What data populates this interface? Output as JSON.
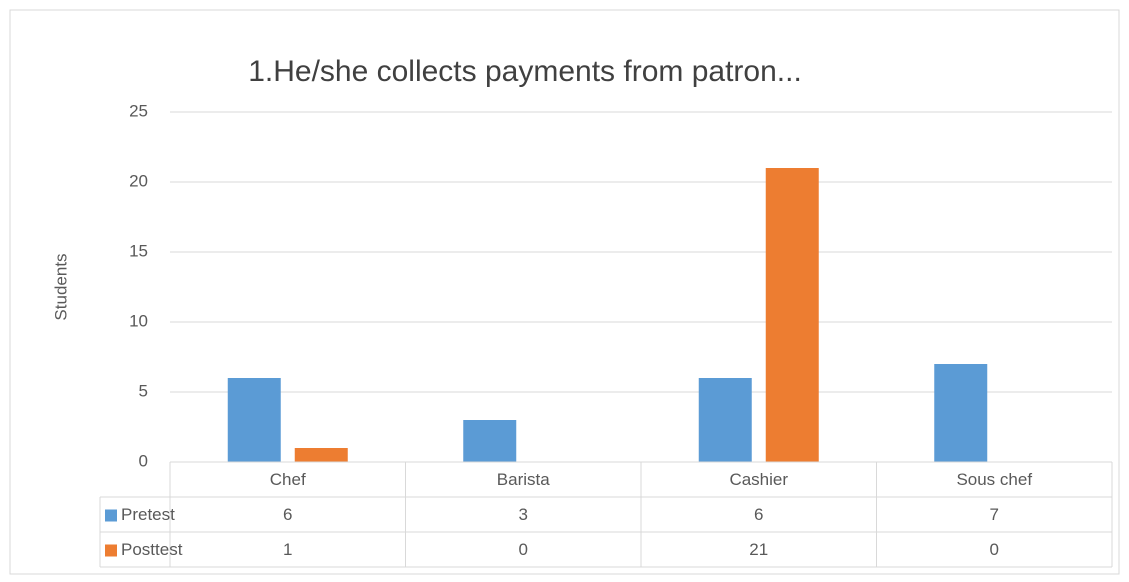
{
  "chart_data": {
    "type": "bar",
    "title": "1.He/she collects payments from patron...",
    "y_label": "Students",
    "categories": [
      "Chef",
      "Barista",
      "Cashier",
      "Sous chef"
    ],
    "series": [
      {
        "name": "Pretest",
        "color": "#5b9bd5",
        "values": [
          6,
          3,
          6,
          7
        ]
      },
      {
        "name": "Posttest",
        "color": "#ed7d31",
        "values": [
          1,
          0,
          21,
          0
        ]
      }
    ],
    "ylim": [
      0,
      25
    ],
    "yticks": [
      0,
      5,
      10,
      15,
      20,
      25
    ],
    "grid": true,
    "data_table": true
  }
}
